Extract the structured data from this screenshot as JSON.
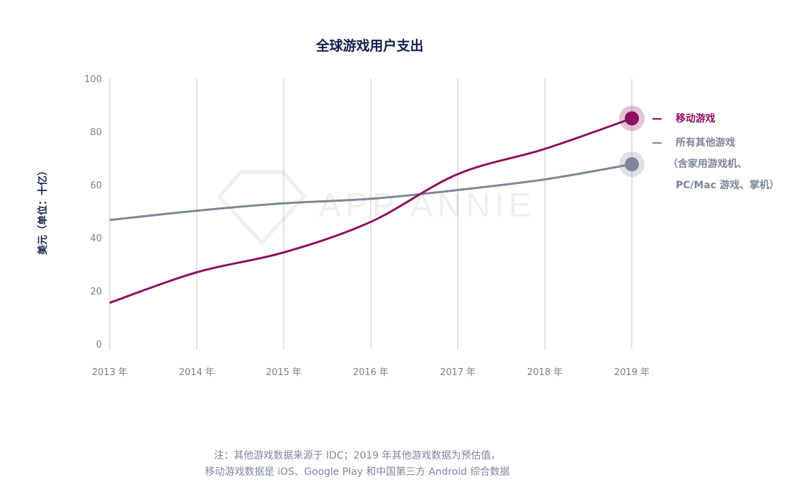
{
  "chart_data": {
    "type": "line",
    "title": "全球游戏用户支出",
    "ylabel": "美元（单位：十亿）",
    "xlabel": "",
    "ylim": [
      0,
      100
    ],
    "yticks": [
      "0",
      "20",
      "40",
      "60",
      "80",
      "100"
    ],
    "categories": [
      "2013 年",
      "2014 年",
      "2015 年",
      "2016 年",
      "2017 年",
      "2018 年",
      "2019 年"
    ],
    "grid": "vertical",
    "legend_position": "right",
    "series": [
      {
        "name": "移动游戏",
        "color": "#8c1062",
        "values": [
          15.5,
          27,
          34.5,
          46,
          64,
          73.5,
          85
        ]
      },
      {
        "name": "所有其他游戏",
        "name_line2": "（含家用游戏机、",
        "name_line3": "PC/Mac 游戏、掌机）",
        "color": "#7d8699",
        "values": [
          46.7,
          50.2,
          53,
          54.7,
          58,
          62,
          67.7
        ]
      }
    ]
  },
  "watermark": "APP ANNIE",
  "note": {
    "line1": "注：其他游戏数据来源于 IDC；2019 年其他游戏数据为预估值，",
    "line2": "移动游戏数据是 iOS、Google Play 和中国第三方 Android 综合数据"
  }
}
